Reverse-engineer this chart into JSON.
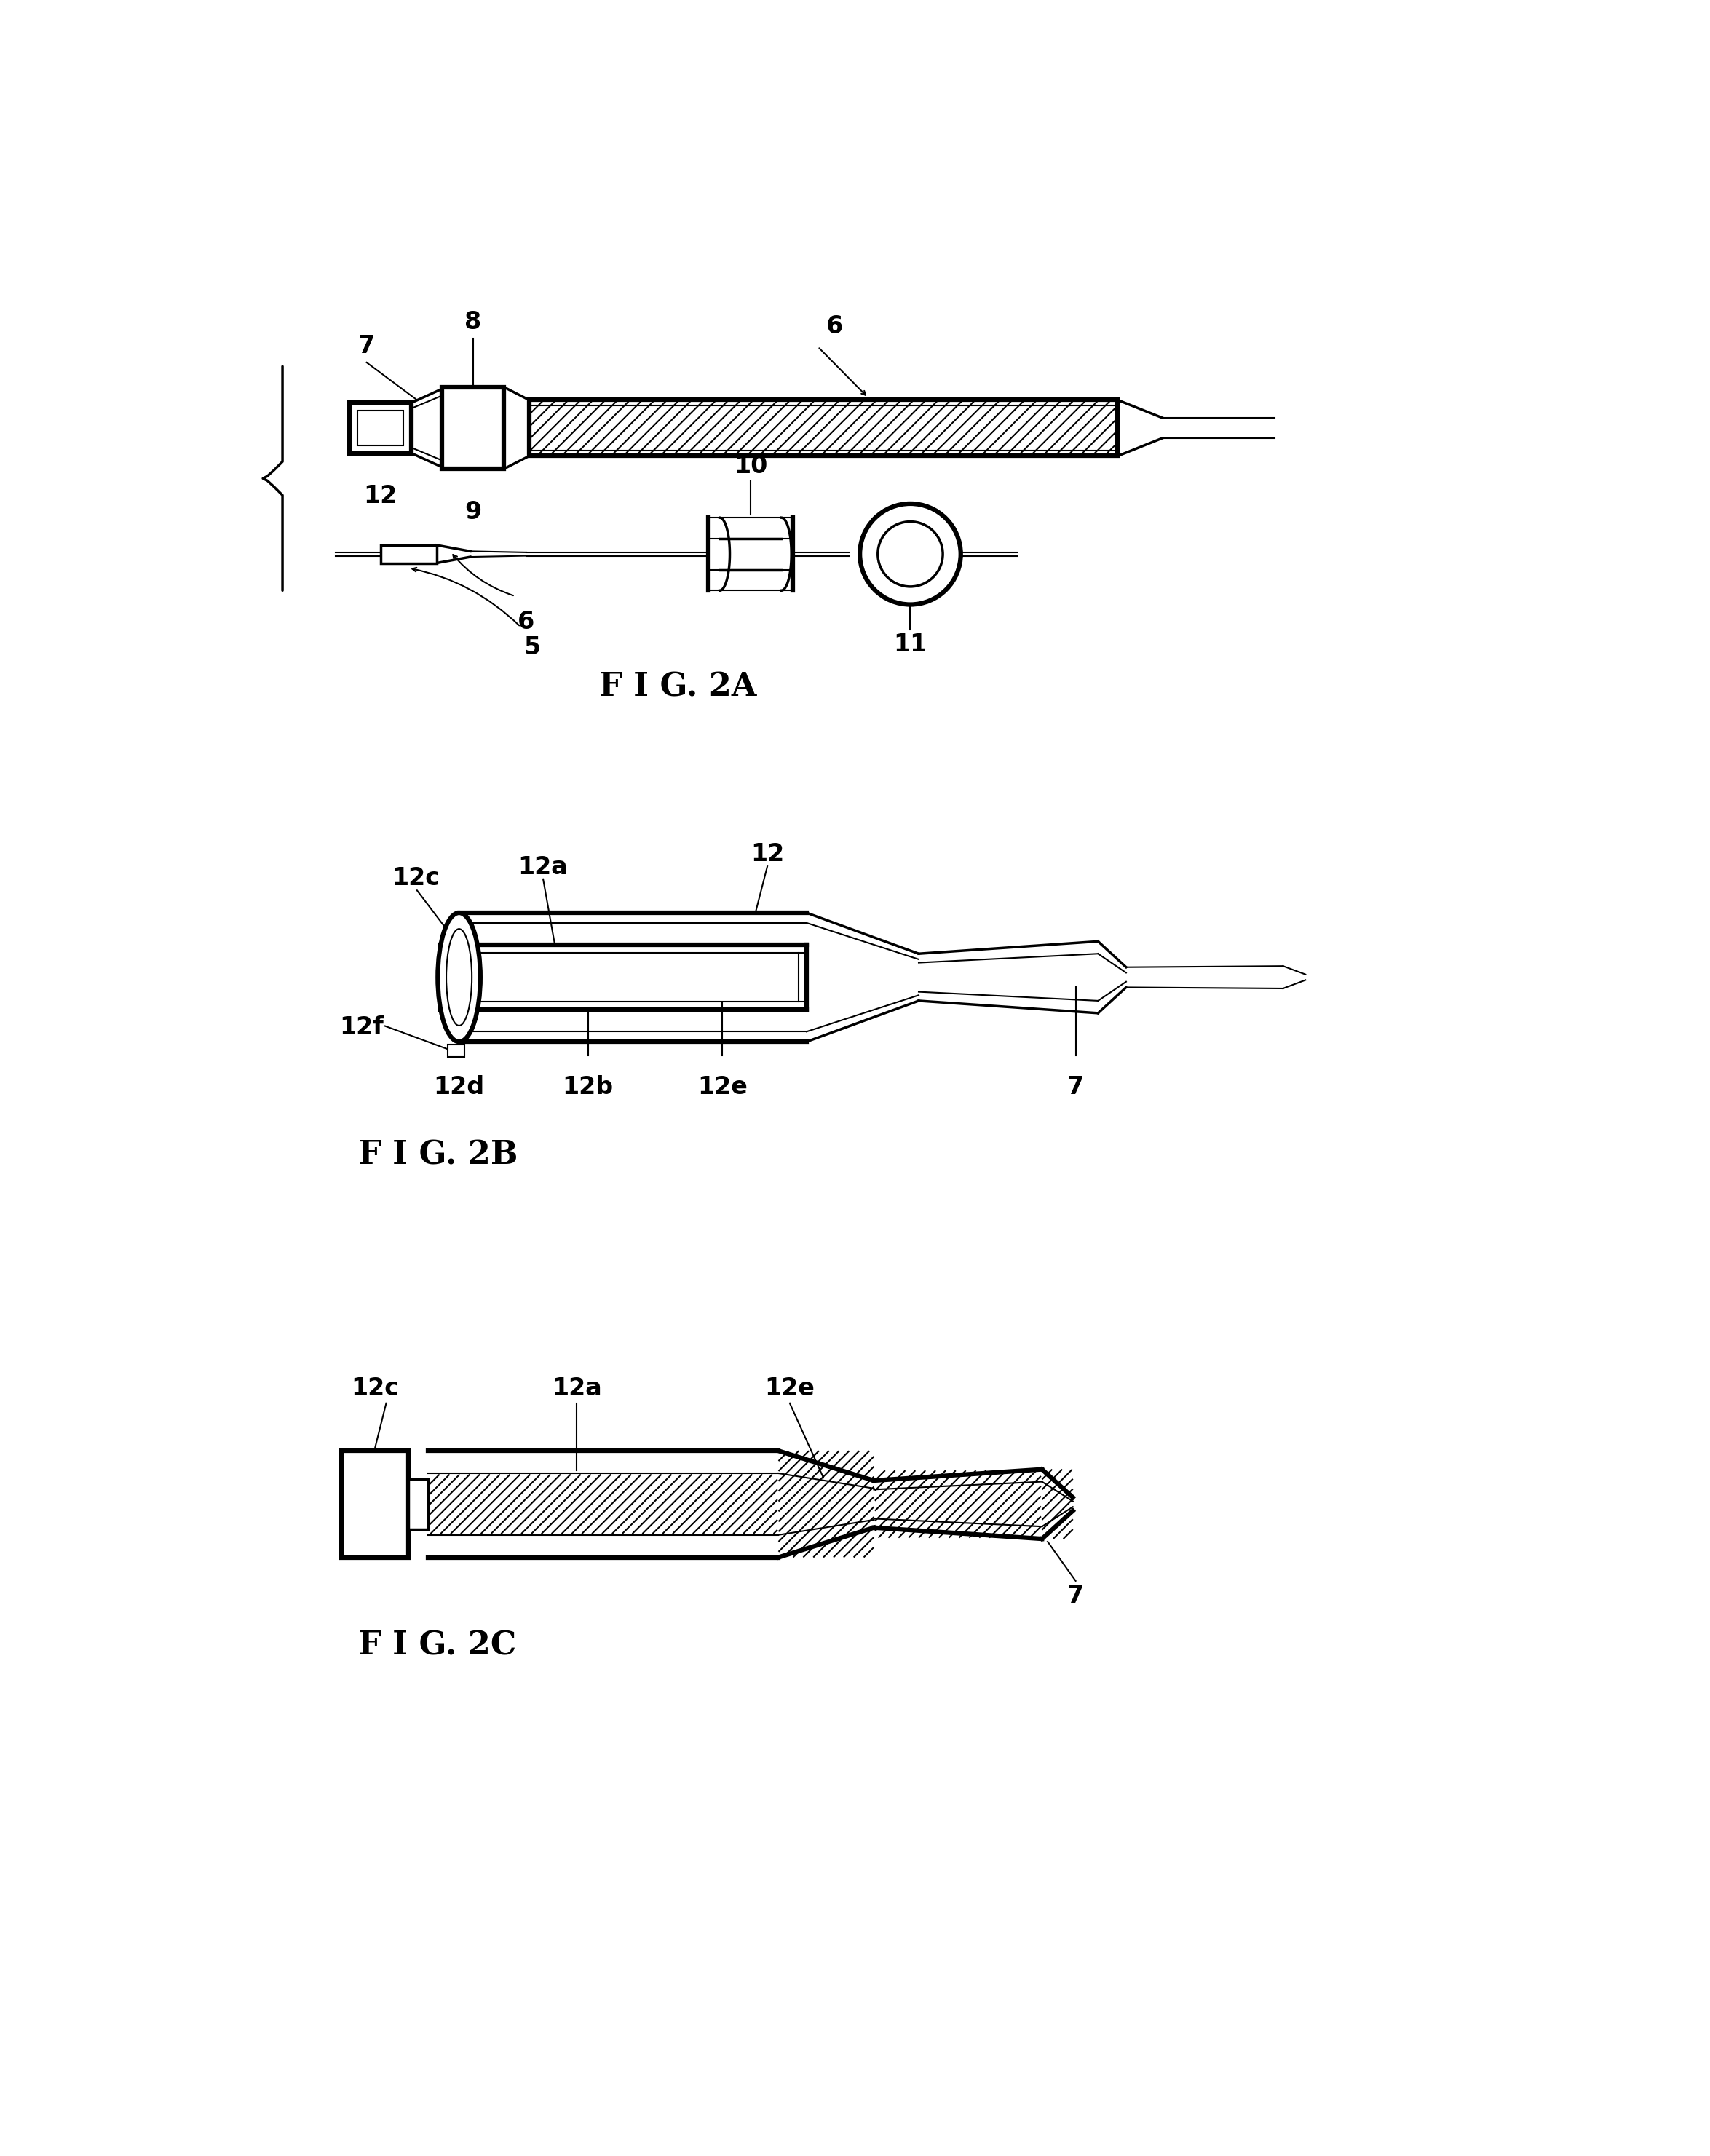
{
  "fig_width": 23.49,
  "fig_height": 29.62,
  "bg_color": "#ffffff",
  "line_color": "#000000",
  "labels": {
    "fig2a": "F I G. 2A",
    "fig2b": "F I G. 2B",
    "fig2c": "F I G. 2C"
  },
  "label_fontsize": 32,
  "ref_fontsize": 24
}
